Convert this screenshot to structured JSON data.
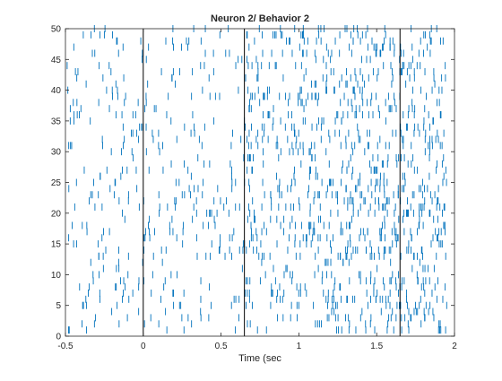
{
  "chart_data": {
    "type": "raster",
    "title": "Neuron 2/ Behavior 2",
    "xlabel": "Time (sec",
    "ylabel": "",
    "xlim": [
      -0.5,
      2
    ],
    "ylim": [
      0,
      50
    ],
    "xticks": [
      -0.5,
      0,
      0.5,
      1,
      1.5,
      2
    ],
    "xtick_labels": [
      "-0.5",
      "0",
      "0.5",
      "1",
      "1.5",
      "2"
    ],
    "yticks": [
      0,
      5,
      10,
      15,
      20,
      25,
      30,
      35,
      40,
      45,
      50
    ],
    "ytick_labels": [
      "0",
      "5",
      "10",
      "15",
      "20",
      "25",
      "30",
      "35",
      "40",
      "45",
      "50"
    ],
    "grid": false,
    "spike_color": "#0072bd",
    "event_line_color": "#000000",
    "event_lines_x": [
      0,
      0.65,
      1.65
    ],
    "trials": 50,
    "spike_time_range": [
      -0.5,
      1.95
    ],
    "spikes_per_trial_approx": [
      23,
      20,
      30,
      16,
      32,
      34,
      30,
      27,
      33,
      20,
      14,
      14,
      35,
      35,
      26,
      37,
      39,
      34,
      21,
      31,
      40,
      35,
      37,
      32,
      33,
      18,
      31,
      19,
      23,
      18,
      36,
      27,
      29,
      27,
      20,
      31,
      23,
      25,
      36,
      26,
      16,
      25,
      27,
      26,
      14,
      30,
      22,
      29,
      28,
      22
    ]
  }
}
